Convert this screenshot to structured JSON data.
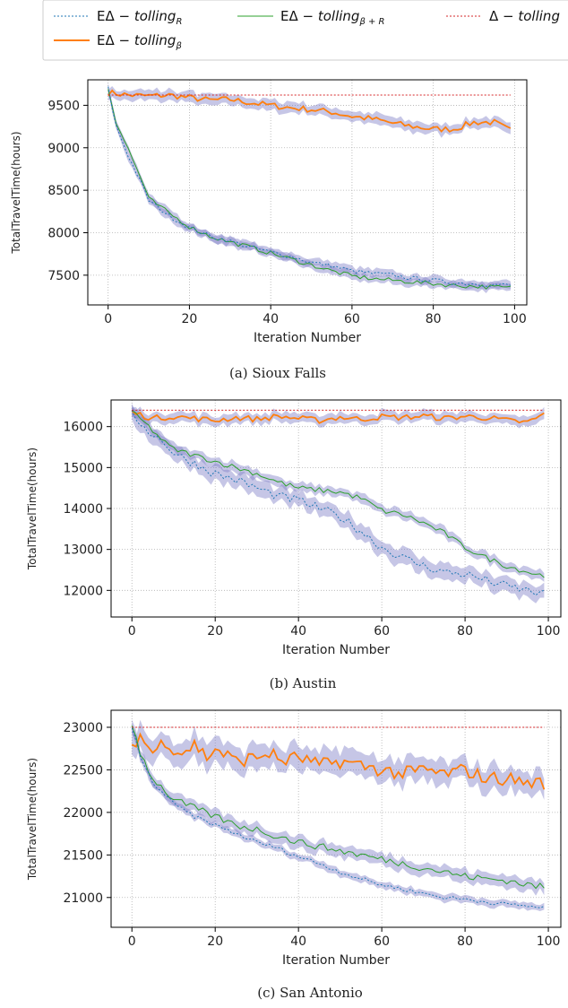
{
  "legend": {
    "position": "top",
    "entries": [
      {
        "key": "r",
        "prefix": "EΔ − ",
        "name": "tolling",
        "sub": "R",
        "color": "#1f77b4",
        "dash": "2,2"
      },
      {
        "key": "br",
        "prefix": "EΔ − ",
        "name": "tolling",
        "sub": "β + R",
        "color": "#2ca02c",
        "dash": ""
      },
      {
        "key": "d",
        "prefix": "Δ − ",
        "name": "tolling",
        "sub": "",
        "color": "#d62728",
        "dash": "2,2"
      },
      {
        "key": "b",
        "prefix": "EΔ − ",
        "name": "tolling",
        "sub": "β",
        "color": "#ff7f0e",
        "dash": ""
      }
    ]
  },
  "band_color": "#8080c8",
  "chart_data": [
    {
      "type": "line",
      "caption": "(a)  Sioux Falls",
      "xlabel": "Iteration Number",
      "ylabel": "TotalTravelTime(hours)",
      "xlim": [
        -5,
        103
      ],
      "ylim": [
        7150,
        9800
      ],
      "xticks": [
        0,
        20,
        40,
        60,
        80,
        100
      ],
      "yticks": [
        7500,
        8000,
        8500,
        9000,
        9500
      ],
      "grid": true,
      "iterations": [
        0,
        99
      ],
      "series": [
        {
          "key": "d",
          "x": [
            0,
            99
          ],
          "y": [
            9620,
            9620
          ]
        },
        {
          "key": "b",
          "x": [
            0,
            5,
            10,
            15,
            20,
            25,
            30,
            35,
            40,
            45,
            50,
            55,
            60,
            65,
            70,
            75,
            80,
            85,
            90,
            95,
            99
          ],
          "y": [
            9650,
            9620,
            9610,
            9620,
            9590,
            9560,
            9570,
            9530,
            9500,
            9470,
            9450,
            9420,
            9370,
            9340,
            9290,
            9250,
            9220,
            9220,
            9300,
            9300,
            9200
          ],
          "band": 60
        },
        {
          "key": "r",
          "x": [
            0,
            2,
            5,
            8,
            10,
            15,
            20,
            25,
            30,
            35,
            40,
            45,
            50,
            55,
            60,
            65,
            70,
            75,
            80,
            85,
            90,
            95,
            99
          ],
          "y": [
            9700,
            9250,
            8900,
            8600,
            8380,
            8200,
            8060,
            7960,
            7900,
            7830,
            7770,
            7720,
            7650,
            7610,
            7550,
            7520,
            7500,
            7460,
            7440,
            7410,
            7400,
            7390,
            7380
          ],
          "band": 45
        },
        {
          "key": "br",
          "x": [
            0,
            2,
            5,
            8,
            10,
            15,
            20,
            25,
            30,
            35,
            40,
            45,
            50,
            55,
            60,
            65,
            70,
            75,
            80,
            85,
            90,
            95,
            99
          ],
          "y": [
            9700,
            9300,
            8980,
            8650,
            8400,
            8230,
            8070,
            7960,
            7890,
            7830,
            7760,
            7690,
            7620,
            7550,
            7490,
            7460,
            7440,
            7420,
            7400,
            7380,
            7370,
            7360,
            7350
          ],
          "band": 45
        }
      ]
    },
    {
      "type": "line",
      "caption": "(b)  Austin",
      "xlabel": "Iteration Number",
      "ylabel": "TotalTravelTime(hours)",
      "xlim": [
        -5,
        103
      ],
      "ylim": [
        11350,
        16650
      ],
      "xticks": [
        0,
        20,
        40,
        60,
        80,
        100
      ],
      "yticks": [
        12000,
        13000,
        14000,
        15000,
        16000
      ],
      "grid": true,
      "iterations": [
        0,
        99
      ],
      "series": [
        {
          "key": "d",
          "x": [
            0,
            99
          ],
          "y": [
            16400,
            16400
          ]
        },
        {
          "key": "b",
          "x": [
            0,
            5,
            10,
            15,
            20,
            25,
            30,
            35,
            40,
            45,
            50,
            55,
            60,
            65,
            70,
            75,
            80,
            85,
            90,
            95,
            99
          ],
          "y": [
            16350,
            16200,
            16250,
            16200,
            16150,
            16220,
            16180,
            16250,
            16200,
            16150,
            16230,
            16180,
            16240,
            16220,
            16260,
            16200,
            16250,
            16220,
            16150,
            16100,
            16300
          ],
          "band": 120
        },
        {
          "key": "br",
          "x": [
            0,
            3,
            5,
            8,
            10,
            15,
            20,
            25,
            30,
            35,
            40,
            45,
            50,
            55,
            60,
            65,
            70,
            75,
            80,
            85,
            90,
            95,
            99
          ],
          "y": [
            16350,
            16100,
            15900,
            15600,
            15450,
            15300,
            15150,
            15000,
            14850,
            14650,
            14500,
            14450,
            14400,
            14250,
            13950,
            13850,
            13650,
            13400,
            13050,
            12800,
            12600,
            12450,
            12350
          ],
          "band": 110
        },
        {
          "key": "r",
          "x": [
            0,
            3,
            5,
            8,
            10,
            15,
            20,
            25,
            30,
            35,
            40,
            45,
            50,
            55,
            60,
            65,
            70,
            75,
            80,
            85,
            90,
            95,
            99
          ],
          "y": [
            16300,
            16000,
            15800,
            15600,
            15350,
            15100,
            14850,
            14700,
            14500,
            14300,
            14200,
            14000,
            13800,
            13450,
            13050,
            12800,
            12600,
            12450,
            12400,
            12250,
            12100,
            12000,
            11900
          ],
          "band": 180
        }
      ]
    },
    {
      "type": "line",
      "caption": "(c)  San Antonio",
      "xlabel": "Iteration Number",
      "ylabel": "TotalTravelTime(hours)",
      "xlim": [
        -5,
        103
      ],
      "ylim": [
        20650,
        23200
      ],
      "xticks": [
        0,
        20,
        40,
        60,
        80,
        100
      ],
      "yticks": [
        21000,
        21500,
        22000,
        22500,
        23000
      ],
      "grid": true,
      "iterations": [
        0,
        99
      ],
      "series": [
        {
          "key": "d",
          "x": [
            0,
            99
          ],
          "y": [
            23000,
            23000
          ]
        },
        {
          "key": "b",
          "x": [
            0,
            2,
            5,
            8,
            10,
            12,
            15,
            18,
            20,
            25,
            30,
            33,
            36,
            40,
            45,
            50,
            55,
            60,
            65,
            70,
            75,
            80,
            85,
            90,
            95,
            99
          ],
          "y": [
            22800,
            22900,
            22700,
            22850,
            22750,
            22700,
            22800,
            22650,
            22750,
            22600,
            22650,
            22700,
            22600,
            22650,
            22550,
            22600,
            22550,
            22500,
            22450,
            22500,
            22450,
            22500,
            22400,
            22400,
            22350,
            22350
          ],
          "band": 140
        },
        {
          "key": "br",
          "x": [
            0,
            2,
            5,
            8,
            10,
            15,
            20,
            25,
            30,
            35,
            40,
            45,
            50,
            55,
            60,
            65,
            70,
            75,
            80,
            85,
            90,
            95,
            99
          ],
          "y": [
            23050,
            22700,
            22400,
            22250,
            22150,
            22050,
            21950,
            21850,
            21800,
            21720,
            21650,
            21600,
            21550,
            21500,
            21450,
            21400,
            21350,
            21300,
            21250,
            21220,
            21200,
            21150,
            21120
          ],
          "band": 70
        },
        {
          "key": "r",
          "x": [
            0,
            2,
            5,
            8,
            10,
            15,
            20,
            25,
            30,
            35,
            40,
            45,
            50,
            55,
            60,
            65,
            70,
            75,
            80,
            85,
            90,
            95,
            99
          ],
          "y": [
            23000,
            22650,
            22350,
            22200,
            22100,
            21950,
            21850,
            21750,
            21650,
            21580,
            21480,
            21400,
            21300,
            21220,
            21150,
            21100,
            21050,
            21000,
            20980,
            20950,
            20920,
            20900,
            20880
          ],
          "band": 40
        }
      ]
    }
  ]
}
